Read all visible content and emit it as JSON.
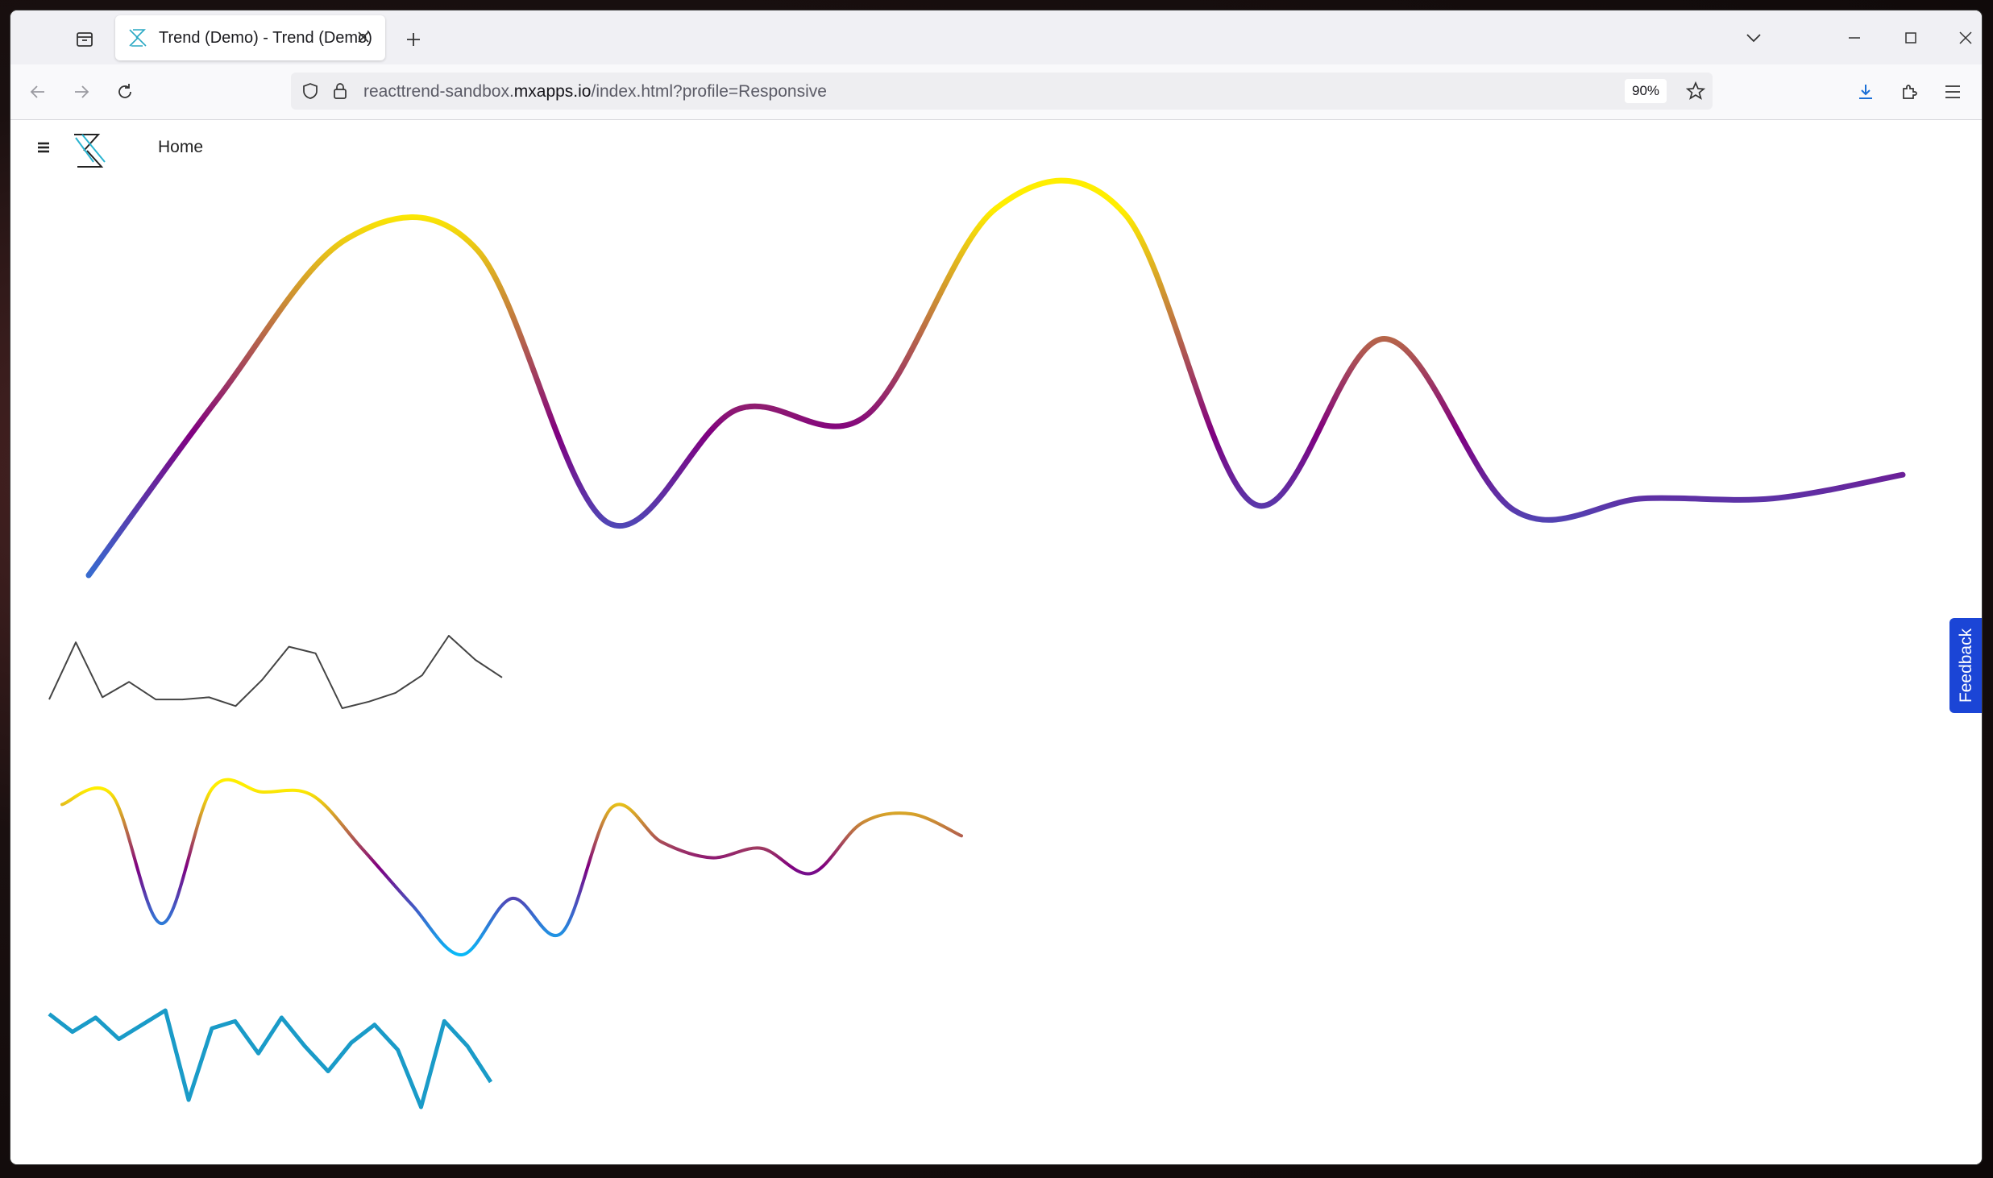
{
  "browser": {
    "tab": {
      "title": "Trend (Demo) - Trend (Demo)"
    },
    "url": {
      "prefix": "reacttrend-sandbox.",
      "host": "mxapps.io",
      "path": "/index.html?profile=Responsive"
    },
    "zoom": "90%"
  },
  "app": {
    "nav": {
      "home_label": "Home"
    },
    "feedback_label": "Feedback"
  },
  "colors": {
    "gradient_yellow": "#ffee00",
    "gradient_purple": "#800080",
    "gradient_blue": "#3f5fc8",
    "gradient_cyan": "#00c8ff",
    "plain_line": "#444444",
    "teal_line": "#1a9bc8",
    "feedback_bg": "#1b45d6"
  },
  "chart_data": [
    {
      "type": "line",
      "style": "smooth-gradient-thick",
      "values": [
        0,
        30,
        57,
        55,
        9,
        28,
        27,
        62,
        61,
        12,
        40,
        11,
        13,
        13,
        17
      ]
    },
    {
      "type": "line",
      "style": "sharp-thin-gray",
      "values": [
        0,
        26,
        1,
        8,
        0,
        0,
        1,
        -3,
        9,
        24,
        21,
        -4,
        -1,
        3,
        11,
        29,
        18,
        10
      ]
    },
    {
      "type": "line",
      "style": "smooth-gradient-medium",
      "values": [
        19,
        22,
        -19,
        24,
        23,
        22,
        5,
        -13,
        -29,
        -11,
        -22,
        18,
        7,
        2,
        5,
        -3,
        13,
        16,
        9
      ]
    },
    {
      "type": "line",
      "style": "sharp-thick-teal",
      "values": [
        15,
        10,
        14,
        8,
        12,
        16,
        -9,
        11,
        13,
        4,
        14,
        6,
        -1,
        7,
        12,
        5,
        -11,
        13,
        6,
        -4
      ]
    }
  ]
}
